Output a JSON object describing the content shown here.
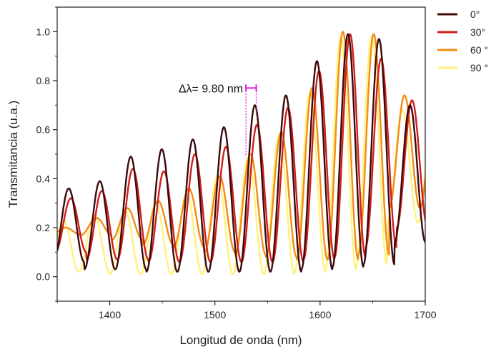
{
  "chart_data": {
    "type": "line",
    "title": "",
    "xlabel": "Longitud de onda (nm)",
    "ylabel": "Transmitancia (u.a.)",
    "xlim": [
      1350,
      1700
    ],
    "ylim": [
      -0.1,
      1.1
    ],
    "xticks": [
      1400,
      1500,
      1600,
      1700
    ],
    "yticks": [
      0.0,
      0.2,
      0.4,
      0.6,
      0.8,
      1.0
    ],
    "xtick_labels": [
      "1400",
      "1500",
      "1600",
      "1700"
    ],
    "ytick_labels": [
      "0.0",
      "0.2",
      "0.4",
      "0.6",
      "0.8",
      "1.0"
    ],
    "grid": false,
    "legend_position": "outside-top-right",
    "series": [
      {
        "name": "0°",
        "color": "#3d0a0a",
        "period_nm": 29.5,
        "phase_nm": 1361,
        "x": [
          1362,
          1391,
          1421,
          1450,
          1480,
          1510,
          1539,
          1568,
          1598,
          1627,
          1656,
          1685
        ],
        "peaks": [
          0.36,
          0.39,
          0.49,
          0.52,
          0.56,
          0.61,
          0.7,
          0.74,
          0.88,
          0.99,
          0.97,
          0.7
        ],
        "valleys": [
          0.06,
          0.03,
          0.03,
          0.02,
          0.02,
          0.02,
          0.02,
          0.02,
          0.03,
          0.04,
          0.05,
          0.14
        ]
      },
      {
        "name": "30°",
        "color": "#d11e1e",
        "period_nm": 29.5,
        "phase_nm": 1363,
        "x": [
          1363,
          1392,
          1422,
          1451,
          1481,
          1510,
          1540,
          1569,
          1598,
          1628,
          1657,
          1686
        ],
        "peaks": [
          0.32,
          0.35,
          0.44,
          0.43,
          0.5,
          0.53,
          0.62,
          0.69,
          0.84,
          0.99,
          0.89,
          0.72
        ],
        "valleys": [
          0.1,
          0.07,
          0.07,
          0.06,
          0.06,
          0.06,
          0.06,
          0.06,
          0.07,
          0.08,
          0.12,
          0.2
        ]
      },
      {
        "name": "60 °",
        "color": "#f28c18",
        "period_nm": 29.3,
        "phase_nm": 1358,
        "x": [
          1360,
          1389,
          1418,
          1447,
          1477,
          1506,
          1535,
          1564,
          1594,
          1623,
          1652,
          1681
        ],
        "peaks": [
          0.2,
          0.24,
          0.28,
          0.31,
          0.36,
          0.41,
          0.5,
          0.59,
          0.77,
          1.0,
          0.99,
          0.74
        ],
        "valleys": [
          0.17,
          0.17,
          0.15,
          0.13,
          0.12,
          0.1,
          0.09,
          0.08,
          0.07,
          0.07,
          0.09,
          0.28
        ]
      },
      {
        "name": "90 °",
        "color": "#fff27a",
        "period_nm": 29.3,
        "phase_nm": 1356,
        "x": [
          1356,
          1385,
          1414,
          1444,
          1473,
          1502,
          1532,
          1561,
          1590,
          1620,
          1649,
          1678
        ],
        "peaks": [
          0.23,
          0.25,
          0.27,
          0.3,
          0.34,
          0.41,
          0.49,
          0.58,
          0.75,
          0.98,
          0.98,
          0.68
        ],
        "valleys": [
          0.02,
          0.02,
          0.01,
          0.01,
          0.01,
          0.01,
          0.01,
          0.01,
          0.02,
          0.03,
          0.05,
          0.22
        ]
      }
    ],
    "annotation": {
      "text": "Δλ= 9.80 nm",
      "x_start": 1529.5,
      "x_end": 1539.3,
      "y": 0.77,
      "color": "#e020e0"
    }
  }
}
